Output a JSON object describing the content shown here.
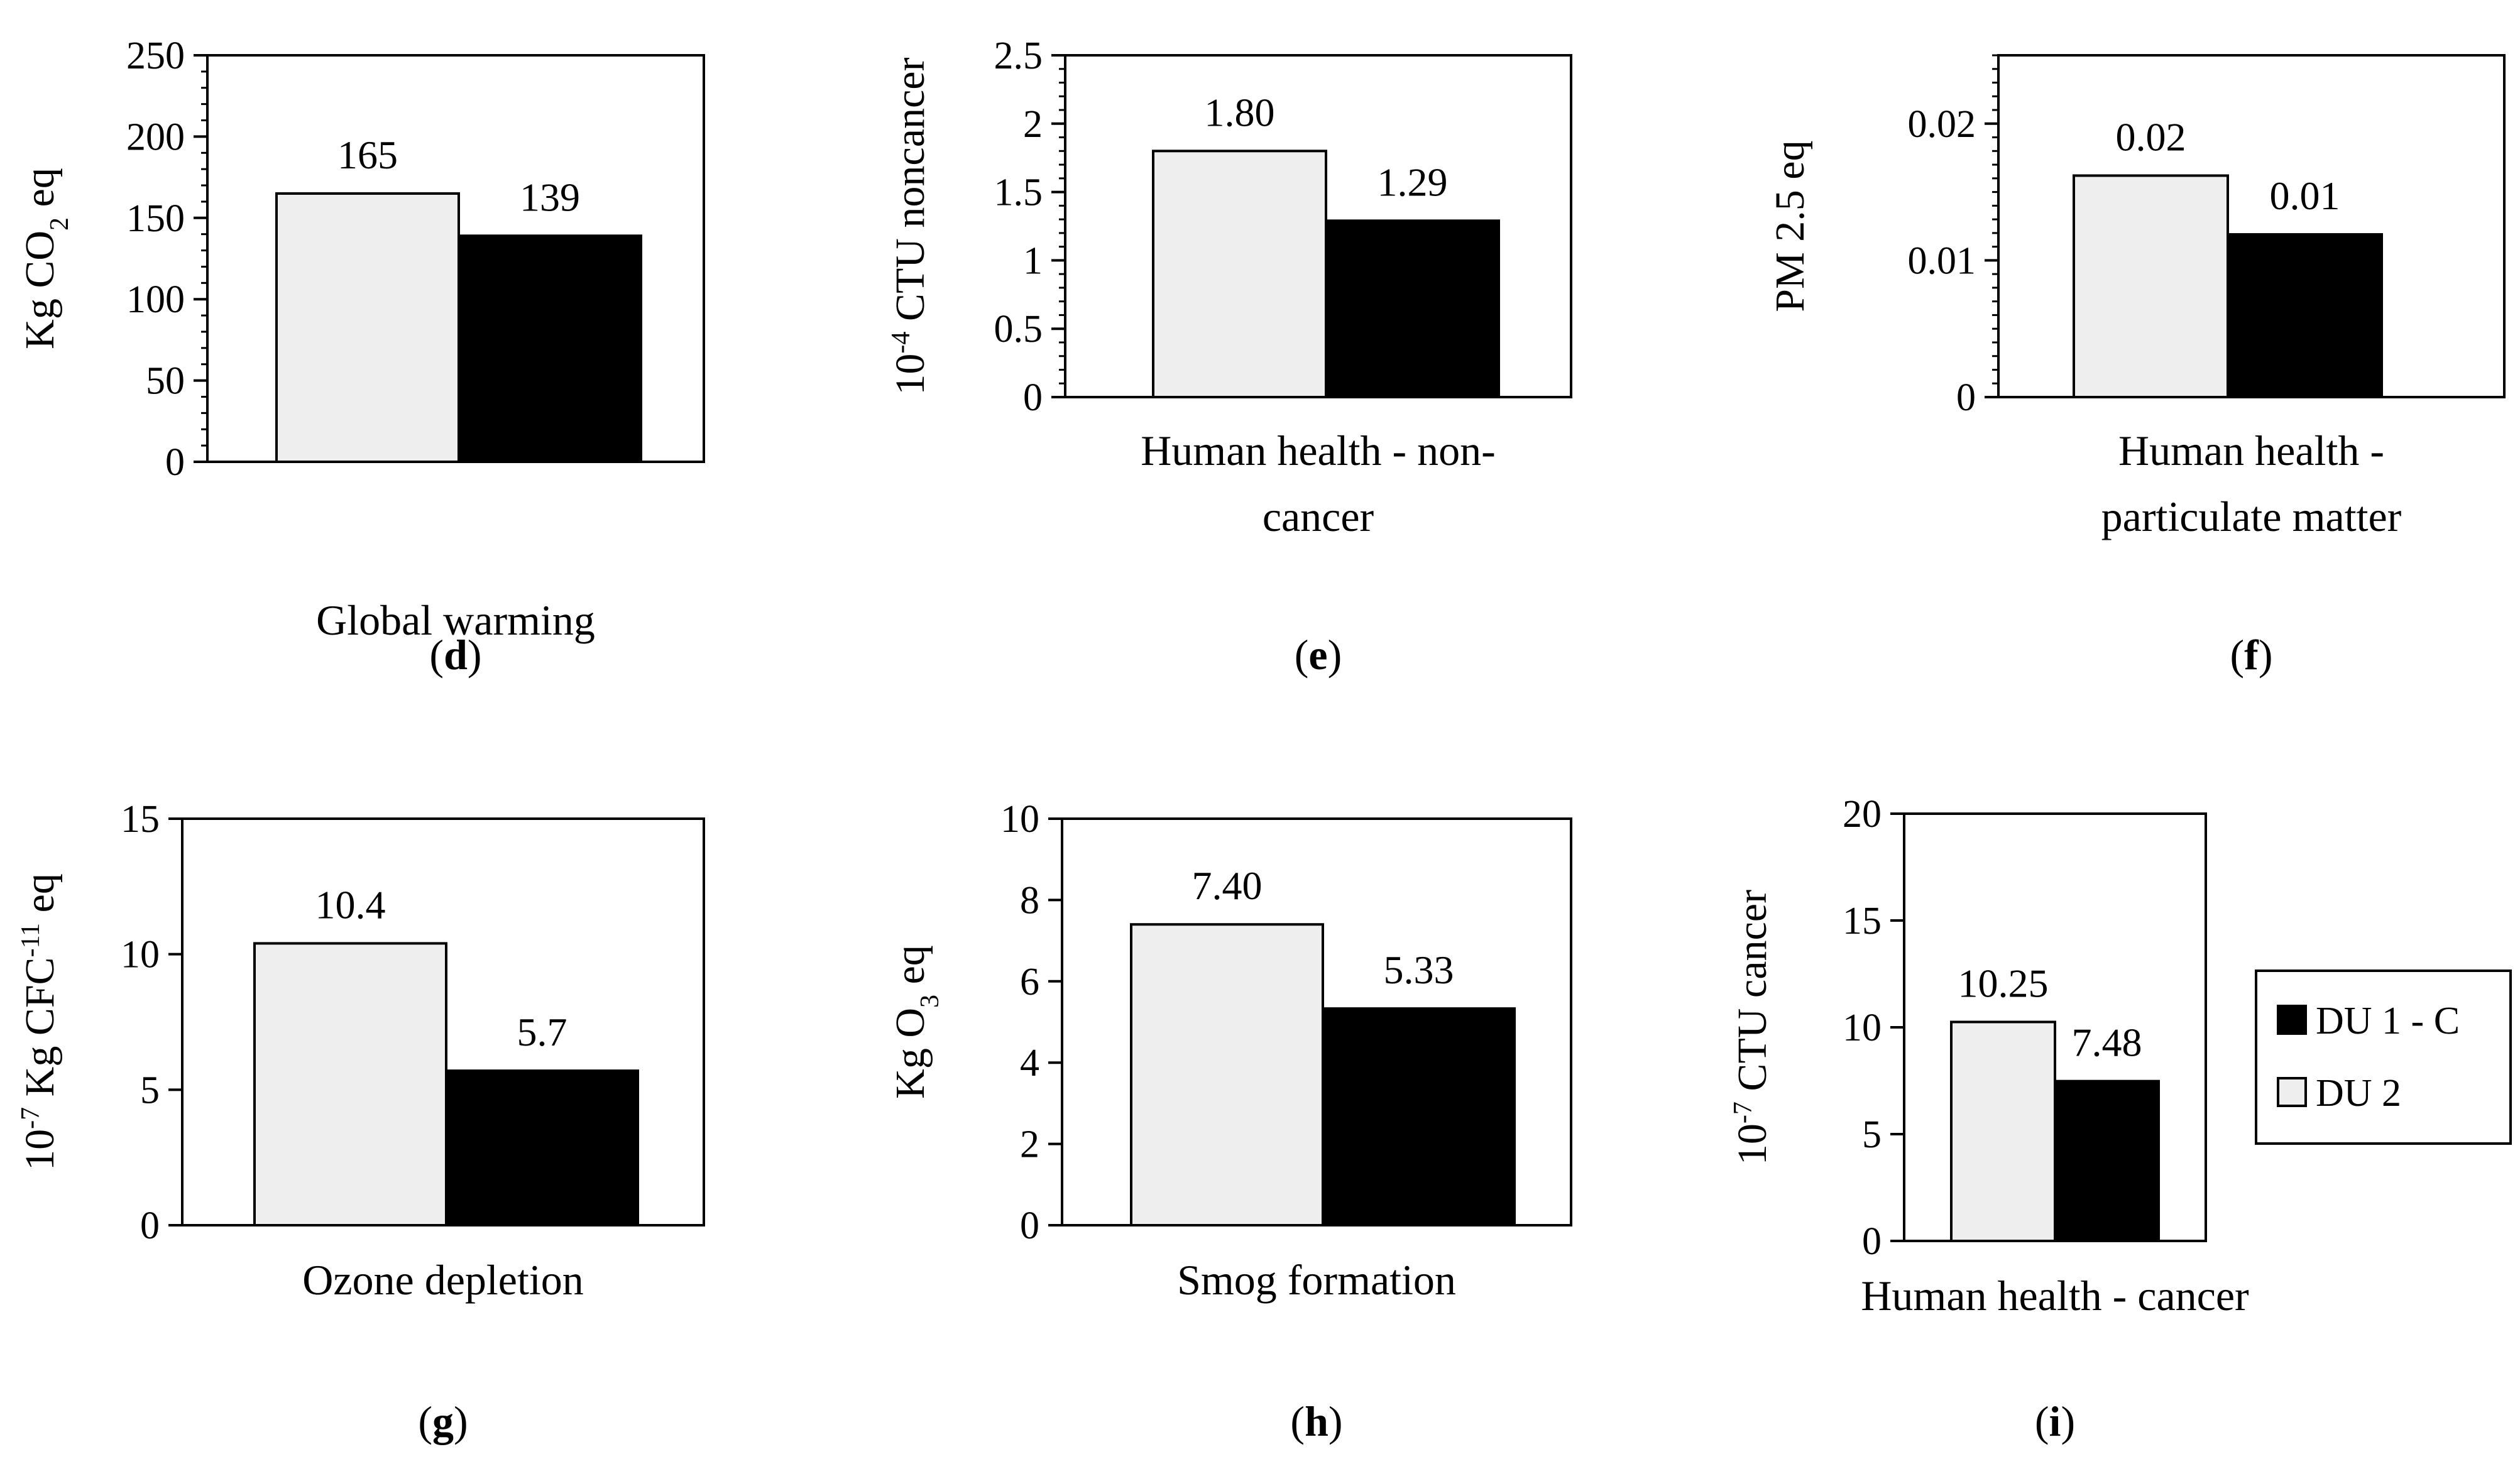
{
  "series": [
    {
      "name": "DU 1 - C",
      "color": "#000000"
    },
    {
      "name": "DU 2",
      "color": "#eeeeee"
    }
  ],
  "legend": [
    {
      "name": "DU 1 - C",
      "color": "#000000"
    },
    {
      "name": "DU 2",
      "color": "#eeeeee"
    }
  ],
  "chart_data": [
    {
      "type": "bar",
      "panel": "d",
      "category": "Global warming",
      "category_lines": [
        "Global warming"
      ],
      "ylabel_parts": [
        {
          "t": "Kg CO"
        },
        {
          "t": "2",
          "sub": true
        },
        {
          "t": " eq"
        }
      ],
      "ylim": [
        0,
        250
      ],
      "yticks": [
        {
          "v": 0,
          "l": "0"
        },
        {
          "v": 50,
          "l": "50"
        },
        {
          "v": 100,
          "l": "100"
        },
        {
          "v": 150,
          "l": "150"
        },
        {
          "v": 200,
          "l": "200"
        },
        {
          "v": 250,
          "l": "250"
        }
      ],
      "minor_step": 10,
      "values": {
        "DU 2": 165,
        "DU 1 - C": 139
      },
      "labels": {
        "DU 2": "165",
        "DU 1 - C": "139"
      }
    },
    {
      "type": "bar",
      "panel": "e",
      "category": "Human health - non-cancer",
      "category_lines": [
        "Human health - non-",
        "cancer"
      ],
      "ylabel_parts": [
        {
          "t": "10"
        },
        {
          "t": "-4",
          "sup": true
        },
        {
          "t": " CTU noncancer"
        }
      ],
      "ylim": [
        0,
        2.5
      ],
      "yticks": [
        {
          "v": 0,
          "l": "0"
        },
        {
          "v": 0.5,
          "l": "0.5"
        },
        {
          "v": 1,
          "l": "1"
        },
        {
          "v": 1.5,
          "l": "1.5"
        },
        {
          "v": 2,
          "l": "2"
        },
        {
          "v": 2.5,
          "l": "2.5"
        }
      ],
      "minor_step": 0.1,
      "values": {
        "DU 2": 1.8,
        "DU 1 - C": 1.29
      },
      "labels": {
        "DU 2": "1.80",
        "DU 1 - C": "1.29"
      }
    },
    {
      "type": "bar",
      "panel": "f",
      "category": "Human health - particulate matter",
      "category_lines": [
        "Human health -",
        "particulate matter"
      ],
      "ylabel_parts": [
        {
          "t": "PM 2.5 eq"
        }
      ],
      "ylim": [
        0,
        0.025
      ],
      "yticks": [
        {
          "v": 0,
          "l": "0"
        },
        {
          "v": 0.01,
          "l": "0.01"
        },
        {
          "v": 0.02,
          "l": "0.02"
        }
      ],
      "minor_step": 0.001,
      "values": {
        "DU 2": 0.0162,
        "DU 1 - C": 0.0119
      },
      "labels": {
        "DU 2": "0.02",
        "DU 1 - C": "0.01"
      }
    },
    {
      "type": "bar",
      "panel": "g",
      "category": "Ozone depletion",
      "category_lines": [
        "Ozone depletion"
      ],
      "ylabel_parts": [
        {
          "t": "10"
        },
        {
          "t": "-7",
          "sup": true
        },
        {
          "t": " Kg CFC"
        },
        {
          "t": "-11",
          "sup": true
        },
        {
          "t": " eq"
        }
      ],
      "ylim": [
        0,
        15
      ],
      "yticks": [
        {
          "v": 0,
          "l": "0"
        },
        {
          "v": 5,
          "l": "5"
        },
        {
          "v": 10,
          "l": "10"
        },
        {
          "v": 15,
          "l": "15"
        }
      ],
      "minor_step": 0,
      "values": {
        "DU 2": 10.4,
        "DU 1 - C": 5.7
      },
      "labels": {
        "DU 2": "10.4",
        "DU 1 - C": "5.7"
      }
    },
    {
      "type": "bar",
      "panel": "h",
      "category": "Smog formation",
      "category_lines": [
        "Smog formation"
      ],
      "ylabel_parts": [
        {
          "t": "Kg O"
        },
        {
          "t": "3",
          "sub": true
        },
        {
          "t": " eq"
        }
      ],
      "ylim": [
        0,
        10
      ],
      "yticks": [
        {
          "v": 0,
          "l": "0"
        },
        {
          "v": 2,
          "l": "2"
        },
        {
          "v": 4,
          "l": "4"
        },
        {
          "v": 6,
          "l": "6"
        },
        {
          "v": 8,
          "l": "8"
        },
        {
          "v": 10,
          "l": "10"
        }
      ],
      "minor_step": 0,
      "values": {
        "DU 2": 7.4,
        "DU 1 - C": 5.33
      },
      "labels": {
        "DU 2": "7.40",
        "DU 1 - C": "5.33"
      }
    },
    {
      "type": "bar",
      "panel": "i",
      "category": "Human health - cancer",
      "category_lines": [
        "Human health - cancer"
      ],
      "ylabel_parts": [
        {
          "t": "10"
        },
        {
          "t": "-7",
          "sup": true
        },
        {
          "t": " CTU cancer"
        }
      ],
      "ylim": [
        0,
        20
      ],
      "yticks": [
        {
          "v": 0,
          "l": "0"
        },
        {
          "v": 5,
          "l": "5"
        },
        {
          "v": 10,
          "l": "10"
        },
        {
          "v": 15,
          "l": "15"
        },
        {
          "v": 20,
          "l": "20"
        }
      ],
      "minor_step": 0,
      "values": {
        "DU 2": 10.25,
        "DU 1 - C": 7.48
      },
      "labels": {
        "DU 2": "10.25",
        "DU 1 - C": "7.48"
      }
    }
  ]
}
